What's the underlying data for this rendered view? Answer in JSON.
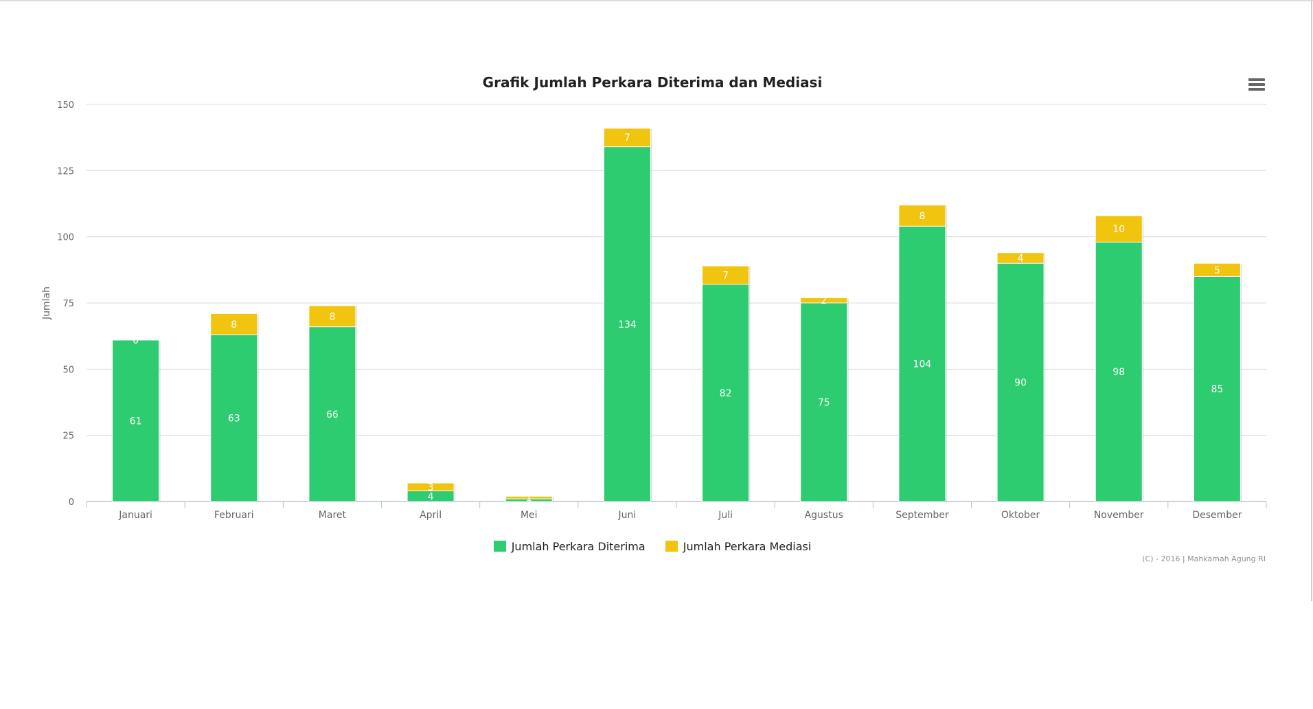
{
  "chart_data": {
    "type": "bar",
    "stacked": true,
    "title": "Grafik Jumlah Perkara Diterima dan Mediasi",
    "ylabel": "Jumlah",
    "xlabel": "",
    "ylim": [
      0,
      150
    ],
    "yticks": [
      0,
      25,
      50,
      75,
      100,
      125,
      150
    ],
    "categories": [
      "Januari",
      "Februari",
      "Maret",
      "April",
      "Mei",
      "Juni",
      "Juli",
      "Agustus",
      "September",
      "Oktober",
      "November",
      "Desember"
    ],
    "series": [
      {
        "name": "Jumlah Perkara Diterima",
        "color": "#2ecc71",
        "values": [
          61,
          63,
          66,
          4,
          1,
          134,
          82,
          75,
          104,
          90,
          98,
          85
        ]
      },
      {
        "name": "Jumlah Perkara Mediasi",
        "color": "#f1c40f",
        "values": [
          0,
          8,
          8,
          3,
          1,
          7,
          7,
          2,
          8,
          4,
          10,
          5
        ]
      }
    ],
    "legend_position": "bottom-center",
    "grid": true
  },
  "credits": "(C) - 2016 | Mahkamah Agung RI",
  "menu_icon": "hamburger-menu-icon"
}
